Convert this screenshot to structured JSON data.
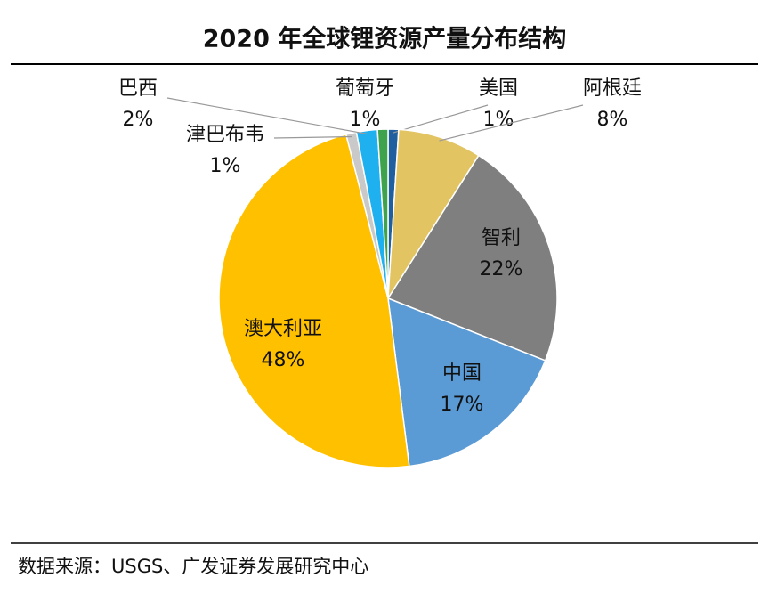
{
  "chart_data": {
    "type": "pie",
    "title": "2020 年全球锂资源产量分布结构",
    "categories": [
      "美国",
      "阿根廷",
      "智利",
      "中国",
      "澳大利亚",
      "津巴布韦",
      "巴西",
      "葡萄牙"
    ],
    "values": [
      1,
      8,
      22,
      17,
      48,
      1,
      2,
      1
    ],
    "value_labels": [
      "1%",
      "8%",
      "22%",
      "17%",
      "48%",
      "1%",
      "2%",
      "1%"
    ],
    "colors": [
      "#1f5fa0",
      "#e3c462",
      "#7f7f7f",
      "#5b9bd5",
      "#ffc000",
      "#c9c9c9",
      "#1fb0f0",
      "#3fa34d"
    ],
    "source": "数据来源：USGS、广发证券发展研究中心"
  }
}
